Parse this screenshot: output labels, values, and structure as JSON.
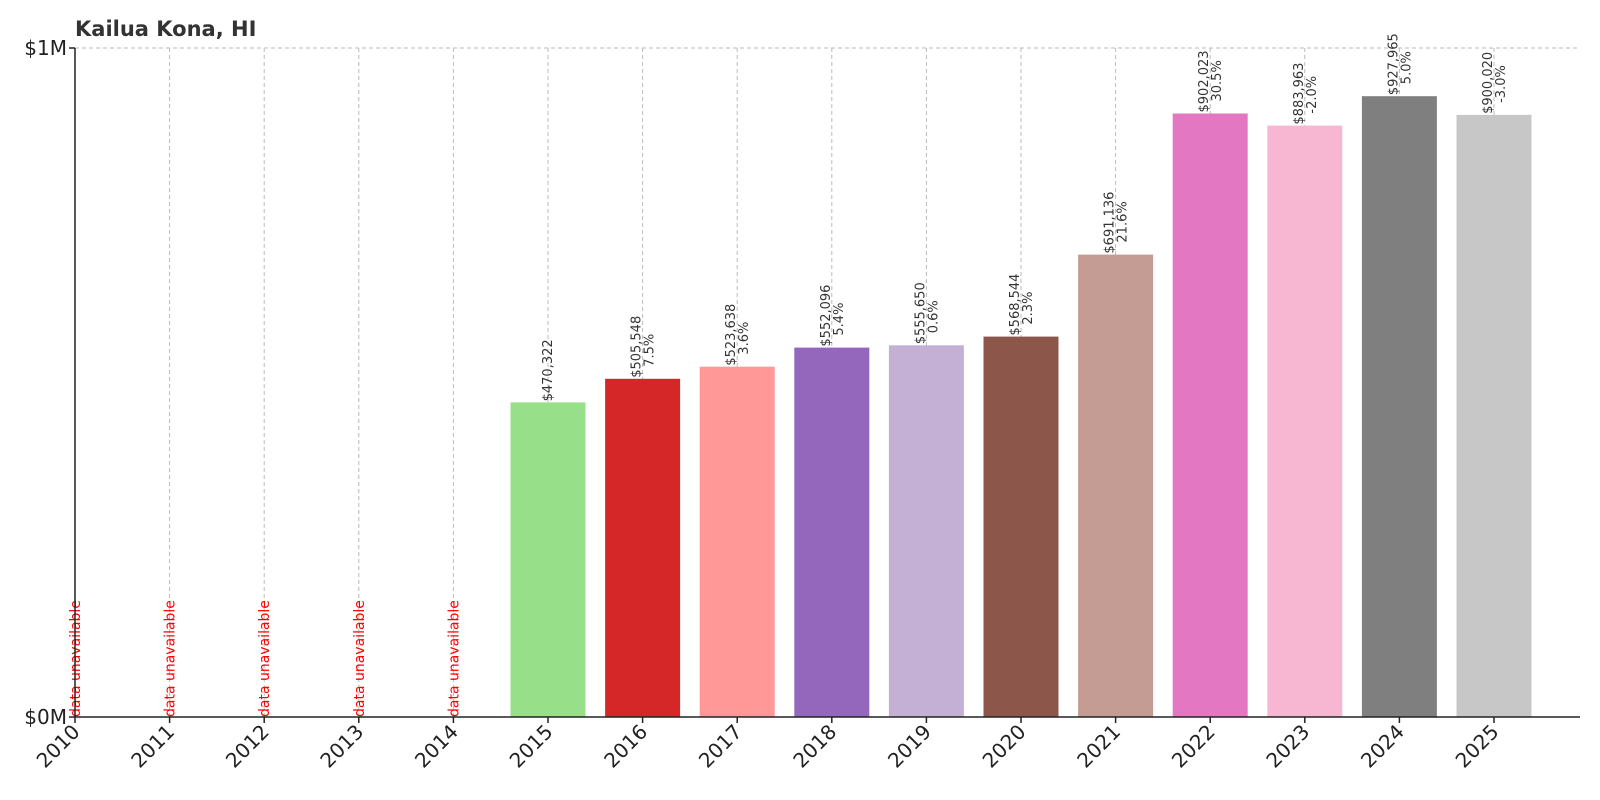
{
  "chart_data": {
    "type": "bar",
    "title": "Kailua Kona, HI",
    "xlabel": "",
    "ylabel": "",
    "ylim": [
      0,
      1000000
    ],
    "yticks": [
      {
        "value": 0,
        "label": "$0M"
      },
      {
        "value": 1000000,
        "label": "$1M"
      }
    ],
    "grid": "vertical dashed at each year; horizontal dashed at top",
    "categories": [
      "2010",
      "2011",
      "2012",
      "2013",
      "2014",
      "2015",
      "2016",
      "2017",
      "2018",
      "2019",
      "2020",
      "2021",
      "2022",
      "2023",
      "2024",
      "2025"
    ],
    "values": [
      null,
      null,
      null,
      null,
      null,
      470322,
      505548,
      523638,
      552096,
      555650,
      568544,
      691136,
      902023,
      883963,
      927965,
      900020
    ],
    "value_labels": [
      "",
      "",
      "",
      "",
      "",
      "$470,322",
      "$505,548",
      "$523,638",
      "$552,096",
      "$555,650",
      "$568,544",
      "$691,136",
      "$902,023",
      "$883,963",
      "$927,965",
      "$900,020"
    ],
    "change_labels": [
      "",
      "",
      "",
      "",
      "",
      "",
      "7.5%",
      "3.6%",
      "5.4%",
      "0.6%",
      "2.3%",
      "21.6%",
      "30.5%",
      "-2.0%",
      "5.0%",
      "-3.0%"
    ],
    "unavailable_text": "data unavailable",
    "colors": [
      "#1f77b4",
      "#aec7e8",
      "#ff7f0e",
      "#ffbb78",
      "#2ca02c",
      "#98df8a",
      "#d62728",
      "#ff9896",
      "#9467bd",
      "#c5b0d5",
      "#8c564b",
      "#c49c94",
      "#e377c2",
      "#f7b6d2",
      "#7f7f7f",
      "#c7c7c7"
    ]
  }
}
